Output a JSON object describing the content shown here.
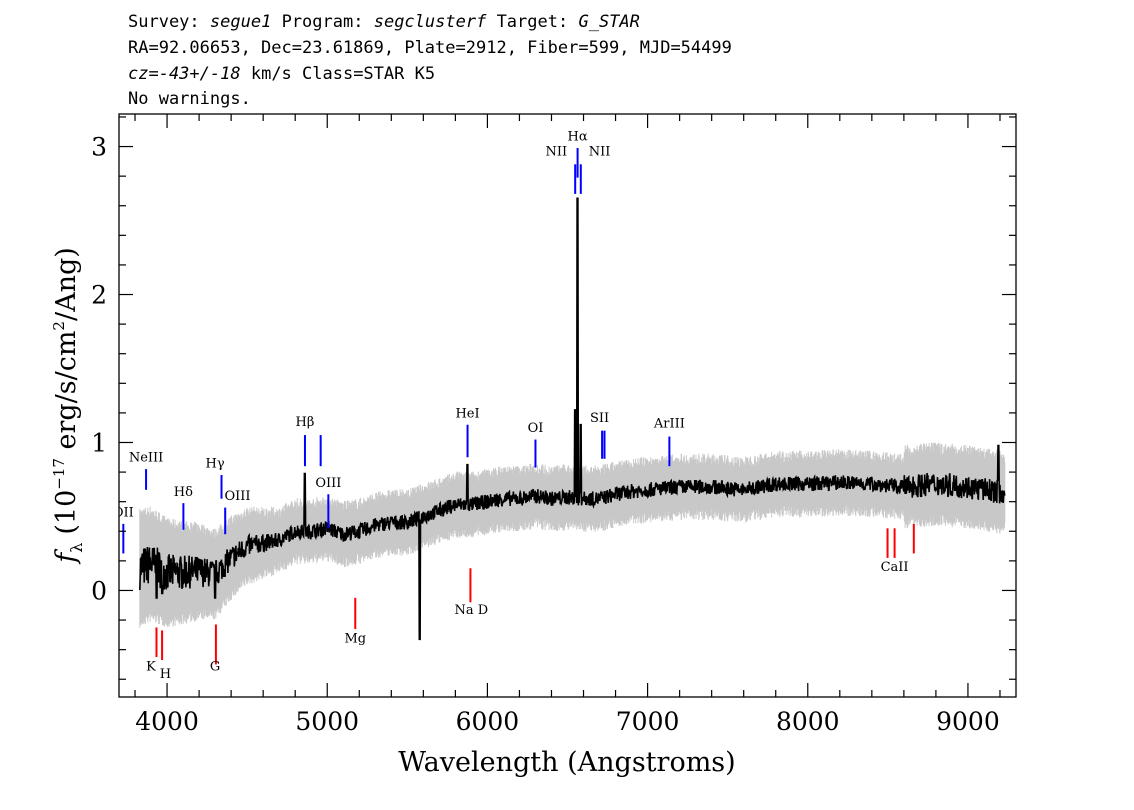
{
  "header": {
    "survey_label": "Survey:",
    "survey": "segue1",
    "program_label": "Program:",
    "program": "segclusterf",
    "target_label": "Target:",
    "target": "G_STAR",
    "line2": "RA=92.06653, Dec=23.61869, Plate=2912, Fiber=599, MJD=54499",
    "cz": "cz=-43+/-18",
    "line3_rest": "km/s Class=STAR K5",
    "line4": "No warnings."
  },
  "chart_data": {
    "type": "line",
    "xlabel": "Wavelength (Angstroms)",
    "ylabel": "f_λ (10^-17 erg/s/cm^2/Ang)",
    "ylabel_parts": {
      "f": "f",
      "sub": "λ",
      "a": "(10",
      "exp": "−17",
      "b": " erg/s/cm",
      "exp2": "2",
      "c": "/Ang)"
    },
    "xlim": [
      3700,
      9300
    ],
    "ylim": [
      -0.72,
      3.22
    ],
    "x_ticks": [
      4000,
      5000,
      6000,
      7000,
      8000,
      9000
    ],
    "y_ticks": [
      0,
      1,
      2,
      3
    ],
    "x_minor_step": 200,
    "y_minor_step": 0.2,
    "colors": {
      "flux": "#000000",
      "error_band": "#c8c8c8",
      "emission": "#0000ff",
      "absorption": "#ff0000"
    },
    "flux_anchors": [
      [
        3830,
        0.15
      ],
      [
        3900,
        0.18
      ],
      [
        4000,
        0.12
      ],
      [
        4100,
        0.12
      ],
      [
        4200,
        0.13
      ],
      [
        4300,
        0.11
      ],
      [
        4400,
        0.22
      ],
      [
        4500,
        0.3
      ],
      [
        4600,
        0.32
      ],
      [
        4700,
        0.34
      ],
      [
        4800,
        0.4
      ],
      [
        4860,
        0.4
      ],
      [
        4900,
        0.4
      ],
      [
        5000,
        0.42
      ],
      [
        5100,
        0.38
      ],
      [
        5200,
        0.4
      ],
      [
        5300,
        0.44
      ],
      [
        5400,
        0.46
      ],
      [
        5500,
        0.46
      ],
      [
        5600,
        0.5
      ],
      [
        5700,
        0.54
      ],
      [
        5800,
        0.58
      ],
      [
        5900,
        0.58
      ],
      [
        6000,
        0.6
      ],
      [
        6100,
        0.62
      ],
      [
        6200,
        0.62
      ],
      [
        6300,
        0.64
      ],
      [
        6400,
        0.62
      ],
      [
        6500,
        0.63
      ],
      [
        6600,
        0.62
      ],
      [
        6700,
        0.62
      ],
      [
        6800,
        0.65
      ],
      [
        6900,
        0.67
      ],
      [
        7000,
        0.68
      ],
      [
        7200,
        0.7
      ],
      [
        7400,
        0.7
      ],
      [
        7600,
        0.68
      ],
      [
        7800,
        0.72
      ],
      [
        8000,
        0.72
      ],
      [
        8200,
        0.73
      ],
      [
        8400,
        0.72
      ],
      [
        8600,
        0.7
      ],
      [
        8800,
        0.72
      ],
      [
        9000,
        0.7
      ],
      [
        9230,
        0.66
      ]
    ],
    "flux_features": [
      {
        "x": 3934,
        "y": -0.05,
        "label": "dip K"
      },
      {
        "x": 3969,
        "y": -0.02,
        "label": "dip H"
      },
      {
        "x": 4300,
        "y": -0.05,
        "label": "dip G"
      },
      {
        "x": 4861,
        "y": 0.79,
        "label": "H-beta peak"
      },
      {
        "x": 5577,
        "y": -0.33,
        "label": "sky spike"
      },
      {
        "x": 5875,
        "y": 0.85,
        "label": "HeI peak"
      },
      {
        "x": 6548,
        "y": 1.22,
        "label": "NII peak"
      },
      {
        "x": 6563,
        "y": 2.65,
        "label": "H-alpha peak"
      },
      {
        "x": 6583,
        "y": 1.12,
        "label": "NII peak"
      },
      {
        "x": 9190,
        "y": 0.98,
        "label": "red end spike"
      }
    ],
    "emission_lines": [
      {
        "label": "OII",
        "x": 3727,
        "y0": 0.25,
        "y1": 0.45,
        "lx": 3727,
        "ly": 0.5
      },
      {
        "label": "NeIII",
        "x": 3869,
        "y0": 0.68,
        "y1": 0.82,
        "lx": 3869,
        "ly": 0.87
      },
      {
        "label": "Hδ",
        "x": 4102,
        "y0": 0.41,
        "y1": 0.59,
        "lx": 4102,
        "ly": 0.64
      },
      {
        "label": "Hγ",
        "x": 4340,
        "y0": 0.62,
        "y1": 0.78,
        "lx": 4300,
        "ly": 0.83
      },
      {
        "label": "OIII",
        "x": 4363,
        "y0": 0.38,
        "y1": 0.56,
        "lx": 4440,
        "ly": 0.61
      },
      {
        "label": "Hβ",
        "x": 4861,
        "y0": 0.84,
        "y1": 1.05,
        "lx": 4861,
        "ly": 1.11
      },
      {
        "label": "",
        "x": 4959,
        "y0": 0.84,
        "y1": 1.05,
        "lx": 4959,
        "ly": 1.11
      },
      {
        "label": "OIII",
        "x": 5007,
        "y0": 0.42,
        "y1": 0.65,
        "lx": 5007,
        "ly": 0.7
      },
      {
        "label": "HeI",
        "x": 5876,
        "y0": 0.9,
        "y1": 1.12,
        "lx": 5876,
        "ly": 1.17
      },
      {
        "label": "OI",
        "x": 6300,
        "y0": 0.83,
        "y1": 1.02,
        "lx": 6300,
        "ly": 1.07
      },
      {
        "label": "NII",
        "x": 6548,
        "y0": 2.68,
        "y1": 2.88,
        "lx": 6430,
        "ly": 2.94
      },
      {
        "label": "Hα",
        "x": 6563,
        "y0": 2.79,
        "y1": 2.99,
        "lx": 6563,
        "ly": 3.04
      },
      {
        "label": "NII",
        "x": 6583,
        "y0": 2.68,
        "y1": 2.88,
        "lx": 6700,
        "ly": 2.94
      },
      {
        "label": "SII",
        "x": 6716,
        "y0": 0.89,
        "y1": 1.08,
        "lx": 6700,
        "ly": 1.14
      },
      {
        "label": "",
        "x": 6731,
        "y0": 0.89,
        "y1": 1.08,
        "lx": 6731,
        "ly": 1.14
      },
      {
        "label": "ArIII",
        "x": 7136,
        "y0": 0.84,
        "y1": 1.04,
        "lx": 7136,
        "ly": 1.1
      }
    ],
    "absorption_lines": [
      {
        "label": "K",
        "x": 3934,
        "y0": -0.45,
        "y1": -0.25,
        "lx": 3900,
        "ly": -0.54
      },
      {
        "label": "H",
        "x": 3969,
        "y0": -0.47,
        "y1": -0.27,
        "lx": 3990,
        "ly": -0.59
      },
      {
        "label": "G",
        "x": 4305,
        "y0": -0.5,
        "y1": -0.23,
        "lx": 4300,
        "ly": -0.54
      },
      {
        "label": "Mg",
        "x": 5175,
        "y0": -0.26,
        "y1": -0.05,
        "lx": 5175,
        "ly": -0.35
      },
      {
        "label": "Na D",
        "x": 5894,
        "y0": -0.08,
        "y1": 0.15,
        "lx": 5900,
        "ly": -0.16
      },
      {
        "label": "CaII",
        "x": 8498,
        "y0": 0.22,
        "y1": 0.42,
        "lx": 8542,
        "ly": 0.13
      },
      {
        "label": "",
        "x": 8542,
        "y0": 0.22,
        "y1": 0.42,
        "lx": 8542,
        "ly": 0.13
      },
      {
        "label": "",
        "x": 8662,
        "y0": 0.25,
        "y1": 0.45,
        "lx": 8662,
        "ly": 0.13
      }
    ]
  }
}
